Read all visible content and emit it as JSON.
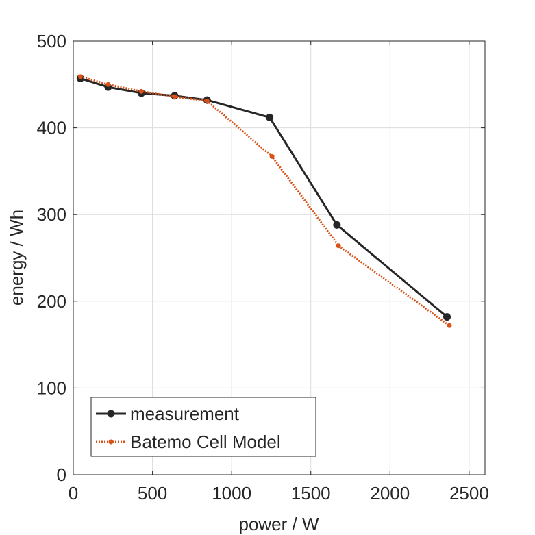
{
  "chart_data": {
    "type": "line",
    "title": "",
    "xlabel": "power / W",
    "ylabel": "energy / Wh",
    "xlim": [
      0,
      2600
    ],
    "ylim": [
      0,
      500
    ],
    "xticks": [
      0,
      500,
      1000,
      1500,
      2000,
      2500
    ],
    "yticks": [
      0,
      100,
      200,
      300,
      400,
      500
    ],
    "grid": true,
    "legend_location": "bottom-left",
    "series": [
      {
        "name": "measurement",
        "color": "#262626",
        "line_style": "solid",
        "marker": "circle",
        "x": [
          45,
          220,
          430,
          640,
          845,
          1240,
          1665,
          2360
        ],
        "y": [
          457,
          447,
          440,
          437,
          432,
          412,
          288,
          182
        ]
      },
      {
        "name": "Batemo Cell Model",
        "color": "#D95319",
        "line_style": "dotted",
        "marker": "circle-small",
        "x": [
          45,
          220,
          430,
          640,
          845,
          1255,
          1675,
          2375
        ],
        "y": [
          459,
          450,
          442,
          436,
          431,
          367,
          264,
          172
        ]
      }
    ]
  }
}
